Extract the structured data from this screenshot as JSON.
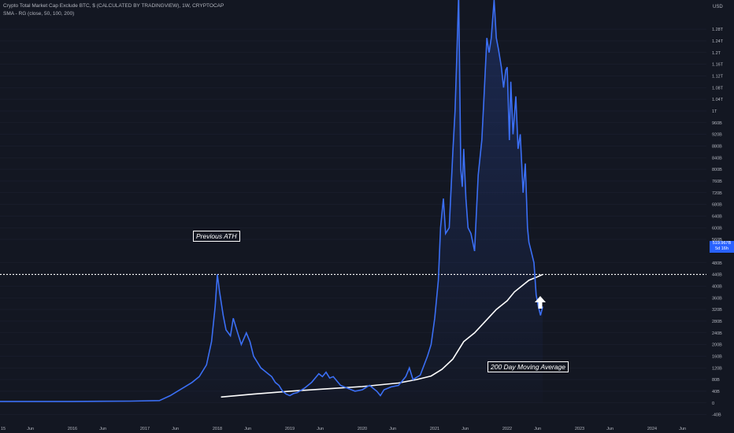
{
  "header": {
    "title": "Crypto Total Market Cap Exclude BTC, $ (CALCULATED BY TRADINGVIEW), 1W, CRYPTOCAP",
    "indicator": "SMA - RG (close, 50, 100, 200)"
  },
  "annotations": {
    "previous_ath": "Previous ATH",
    "moving_average": "200 Day Moving Average"
  },
  "price_tag": {
    "value": "519.967B",
    "countdown": "5d 16h",
    "color": "#2962ff"
  },
  "colors": {
    "price_line": "#3b6ff5",
    "ma_line": "#ffffff",
    "background": "#131722",
    "axis_text": "#b2b5be"
  },
  "arrow_icon": "up-arrow-icon",
  "chart_data": {
    "type": "line",
    "y_unit_label": "USD",
    "y_ticks": [
      "1.28T",
      "1.24T",
      "1.2T",
      "1.16T",
      "1.12T",
      "1.08T",
      "1.04T",
      "1T",
      "960B",
      "920B",
      "880B",
      "840B",
      "800B",
      "760B",
      "720B",
      "680B",
      "640B",
      "600B",
      "560B",
      "480B",
      "440B",
      "400B",
      "360B",
      "320B",
      "280B",
      "240B",
      "200B",
      "160B",
      "120B",
      "80B",
      "40B",
      "0",
      "-40B"
    ],
    "y_tick_values": [
      1280,
      1240,
      1200,
      1160,
      1120,
      1080,
      1040,
      1000,
      960,
      920,
      880,
      840,
      800,
      760,
      720,
      680,
      640,
      600,
      560,
      480,
      440,
      400,
      360,
      320,
      280,
      240,
      200,
      160,
      120,
      80,
      40,
      0,
      -40
    ],
    "ylim": [
      -60,
      1380
    ],
    "x_ticks": [
      "15",
      "Jun",
      "2016",
      "Jun",
      "2017",
      "Jun",
      "2018",
      "Jun",
      "2019",
      "Jun",
      "2020",
      "Jun",
      "2021",
      "Jun",
      "2022",
      "Jun",
      "2023",
      "Jun",
      "2024",
      "Jun"
    ],
    "x_tick_values": [
      2015.0,
      2015.42,
      2016.0,
      2016.42,
      2017.0,
      2017.42,
      2018.0,
      2018.42,
      2019.0,
      2019.42,
      2020.0,
      2020.42,
      2021.0,
      2021.42,
      2022.0,
      2022.42,
      2023.0,
      2023.42,
      2024.0,
      2024.42
    ],
    "xlim": [
      2015.0,
      2024.75
    ],
    "previous_ath_level": 440,
    "series": [
      {
        "x": [
          2015.0,
          2016.0,
          2016.8,
          2017.2,
          2017.35,
          2017.45,
          2017.55,
          2017.65,
          2017.75,
          2017.85,
          2017.92,
          2017.97,
          2018.0,
          2018.03,
          2018.08,
          2018.12,
          2018.18,
          2018.22,
          2018.28,
          2018.33,
          2018.4,
          2018.45,
          2018.5,
          2018.55,
          2018.6,
          2018.65,
          2018.7,
          2018.75,
          2018.8,
          2018.85,
          2018.9,
          2018.95,
          2019.0,
          2019.05,
          2019.1,
          2019.2,
          2019.3,
          2019.4,
          2019.45,
          2019.5,
          2019.55,
          2019.6,
          2019.7,
          2019.8,
          2019.9,
          2020.0,
          2020.1,
          2020.2,
          2020.25,
          2020.3,
          2020.4,
          2020.5,
          2020.6,
          2020.65,
          2020.7,
          2020.8,
          2020.9,
          2020.95,
          2021.0,
          2021.05,
          2021.08,
          2021.12,
          2021.15,
          2021.2,
          2021.25,
          2021.28,
          2021.3,
          2021.33,
          2021.36,
          2021.38,
          2021.4,
          2021.43,
          2021.46,
          2021.5,
          2021.55,
          2021.6,
          2021.65,
          2021.68,
          2021.72,
          2021.75,
          2021.78,
          2021.82,
          2021.85,
          2021.88,
          2021.92,
          2021.95,
          2021.98,
          2022.0,
          2022.03,
          2022.05,
          2022.08,
          2022.12,
          2022.15,
          2022.18,
          2022.22,
          2022.25,
          2022.28,
          2022.3,
          2022.33,
          2022.37,
          2022.4,
          2022.43,
          2022.46,
          2022.49
        ],
        "values": [
          5,
          5,
          6,
          8,
          25,
          40,
          55,
          70,
          90,
          130,
          210,
          330,
          440,
          380,
          300,
          250,
          230,
          290,
          240,
          200,
          240,
          210,
          160,
          140,
          120,
          110,
          100,
          90,
          70,
          60,
          40,
          30,
          25,
          32,
          35,
          50,
          70,
          100,
          90,
          105,
          85,
          90,
          60,
          50,
          40,
          45,
          60,
          40,
          25,
          45,
          55,
          60,
          90,
          120,
          80,
          95,
          160,
          200,
          290,
          420,
          600,
          700,
          580,
          600,
          860,
          1000,
          1150,
          1400,
          800,
          740,
          870,
          700,
          600,
          580,
          520,
          780,
          900,
          1050,
          1250,
          1200,
          1250,
          1380,
          1250,
          1210,
          1150,
          1080,
          1140,
          1150,
          900,
          1100,
          920,
          1050,
          870,
          920,
          720,
          820,
          600,
          550,
          520,
          480,
          370,
          330,
          300,
          330
        ]
      },
      {
        "x": [
          2018.05,
          2018.5,
          2019.0,
          2019.5,
          2020.0,
          2020.5,
          2020.75,
          2020.95,
          2021.1,
          2021.25,
          2021.4,
          2021.55,
          2021.7,
          2021.85,
          2022.0,
          2022.1,
          2022.2,
          2022.3,
          2022.4,
          2022.49
        ],
        "values": [
          20,
          30,
          40,
          48,
          56,
          68,
          80,
          92,
          115,
          150,
          210,
          240,
          280,
          320,
          350,
          380,
          400,
          420,
          430,
          440
        ]
      }
    ]
  }
}
